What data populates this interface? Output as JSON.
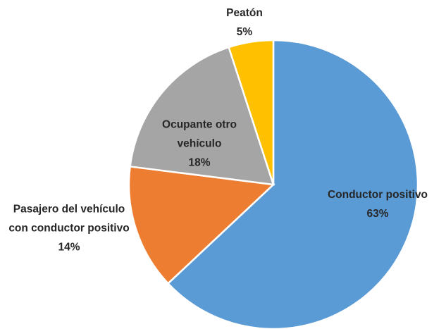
{
  "chart_data": {
    "type": "pie",
    "categories": [
      "Conductor positivo",
      "Pasajero del vehículo con conductor positivo",
      "Ocupante otro vehículo",
      "Peatón"
    ],
    "values": [
      63,
      14,
      18,
      5
    ],
    "value_labels": [
      "63%",
      "14%",
      "18%",
      "5%"
    ],
    "colors": [
      "#5b9bd5",
      "#ed7d31",
      "#a5a5a5",
      "#ffc000"
    ]
  }
}
